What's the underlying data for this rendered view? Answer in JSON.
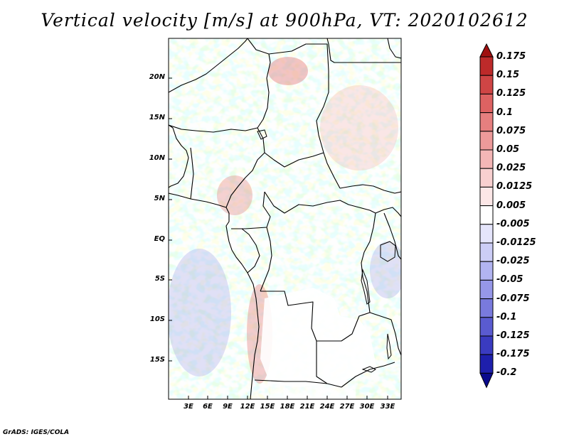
{
  "title": "Vertical velocity [m/s] at 900hPa, VT: 2020102612",
  "credit": "GrADS: IGES/COLA",
  "map": {
    "variable": "Vertical velocity",
    "units": "m/s",
    "level": "900hPa",
    "valid_time": "2020102612",
    "lat_labels": [
      "20N",
      "15N",
      "10N",
      "5N",
      "EQ",
      "5S",
      "10S",
      "15S"
    ],
    "lon_labels": [
      "3E",
      "6E",
      "9E",
      "12E",
      "15E",
      "18E",
      "21E",
      "24E",
      "27E",
      "30E",
      "33E"
    ]
  },
  "colorbar": {
    "labels": [
      "0.175",
      "0.15",
      "0.125",
      "0.1",
      "0.075",
      "0.05",
      "0.025",
      "0.0125",
      "0.005",
      "-0.005",
      "-0.0125",
      "-0.025",
      "-0.05",
      "-0.075",
      "-0.1",
      "-0.125",
      "-0.175",
      "-0.2"
    ],
    "colors": [
      "#a01010",
      "#bd2a2a",
      "#cf4545",
      "#dd6262",
      "#e67f7f",
      "#ed9a9a",
      "#f4b6b6",
      "#f8d0d0",
      "#fce7e7",
      "#ffffff",
      "#e5e5fb",
      "#cccdf6",
      "#b2b4f1",
      "#9697e8",
      "#797add",
      "#5a5bd0",
      "#3a3bc0",
      "#1e1fac",
      "#0a0a8c"
    ]
  }
}
